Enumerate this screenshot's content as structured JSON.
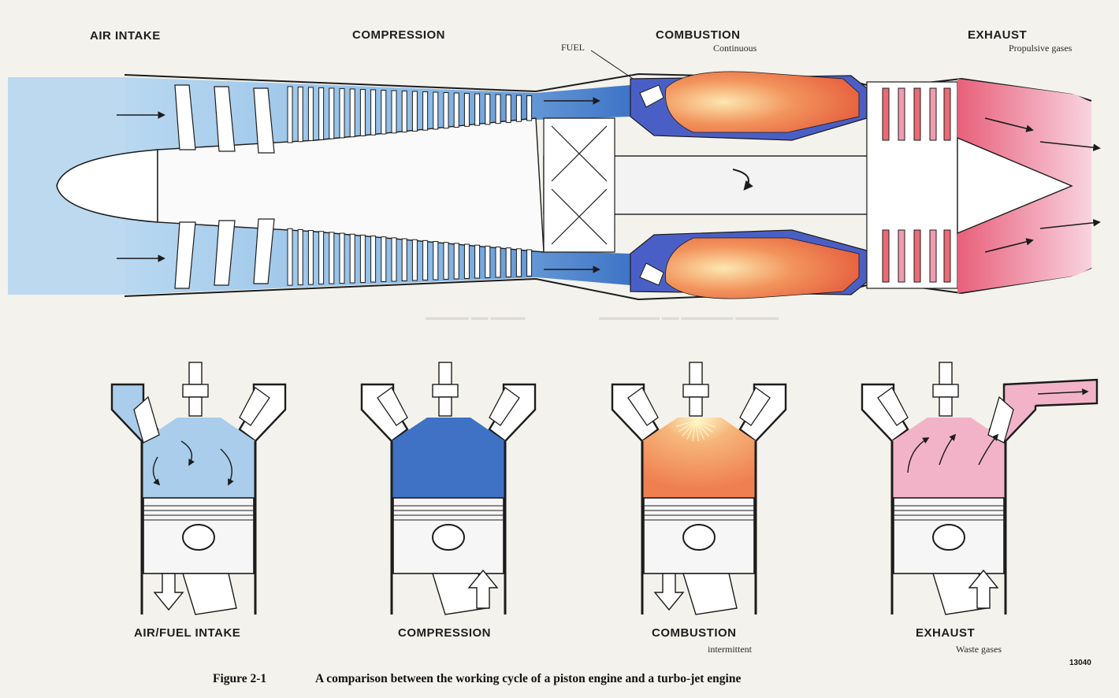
{
  "turbojet": {
    "stages": [
      {
        "title": "AIR INTAKE",
        "subtitle": ""
      },
      {
        "title": "COMPRESSION",
        "subtitle": ""
      },
      {
        "title": "COMBUSTION",
        "subtitle": "Continuous"
      },
      {
        "title": "EXHAUST",
        "subtitle": "Propulsive gases"
      }
    ],
    "fuel_label": "FUEL"
  },
  "piston": {
    "stages": [
      {
        "title": "AIR/FUEL INTAKE",
        "subtitle": ""
      },
      {
        "title": "COMPRESSION",
        "subtitle": ""
      },
      {
        "title": "COMBUSTION",
        "subtitle": "intermittent"
      },
      {
        "title": "EXHAUST",
        "subtitle": "Waste gases"
      }
    ]
  },
  "figure": {
    "number": "Figure 2-1",
    "caption": "A comparison between the working cycle of a piston engine and a turbo-jet engine",
    "ref": "13040"
  },
  "colors": {
    "intake": "#a9cdea",
    "compression": "#3f72c4",
    "combustion": "#ee7b52",
    "exhaust": "#f2b3c9",
    "ink": "#1c1c1c"
  }
}
